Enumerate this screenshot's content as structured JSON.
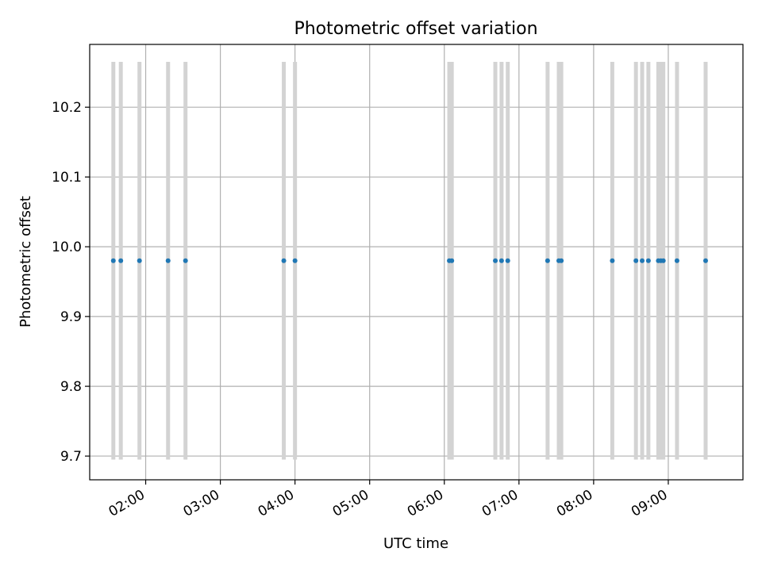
{
  "chart_data": {
    "type": "scatter",
    "title": "Photometric offset variation",
    "xlabel": "UTC time",
    "ylabel": "Photometric offset",
    "x_tick_labels": [
      "02:00",
      "03:00",
      "04:00",
      "05:00",
      "06:00",
      "07:00",
      "08:00",
      "09:00"
    ],
    "y_tick_labels": [
      "9.7",
      "9.8",
      "9.9",
      "10.0",
      "10.1",
      "10.2"
    ],
    "xlim": [
      "01:15",
      "10:00"
    ],
    "ylim": [
      9.666,
      10.29
    ],
    "grid": true,
    "point_color": "#1f77b4",
    "bar_color": "#d3d3d3",
    "error_bar_range": [
      9.695,
      10.265
    ],
    "points": [
      {
        "x": "01:34",
        "y": 9.98
      },
      {
        "x": "01:40",
        "y": 9.98
      },
      {
        "x": "01:55",
        "y": 9.98
      },
      {
        "x": "02:18",
        "y": 9.98
      },
      {
        "x": "02:32",
        "y": 9.98
      },
      {
        "x": "03:51",
        "y": 9.98
      },
      {
        "x": "04:00",
        "y": 9.98
      },
      {
        "x": "06:04",
        "y": 9.98
      },
      {
        "x": "06:06",
        "y": 9.98
      },
      {
        "x": "06:41",
        "y": 9.98
      },
      {
        "x": "06:46",
        "y": 9.98
      },
      {
        "x": "06:51",
        "y": 9.98
      },
      {
        "x": "07:23",
        "y": 9.98
      },
      {
        "x": "07:32",
        "y": 9.98
      },
      {
        "x": "07:34",
        "y": 9.98
      },
      {
        "x": "08:15",
        "y": 9.98
      },
      {
        "x": "08:34",
        "y": 9.98
      },
      {
        "x": "08:39",
        "y": 9.98
      },
      {
        "x": "08:44",
        "y": 9.98
      },
      {
        "x": "08:52",
        "y": 9.98
      },
      {
        "x": "08:54",
        "y": 9.98
      },
      {
        "x": "08:56",
        "y": 9.98
      },
      {
        "x": "09:07",
        "y": 9.98
      },
      {
        "x": "09:30",
        "y": 9.98
      }
    ]
  }
}
